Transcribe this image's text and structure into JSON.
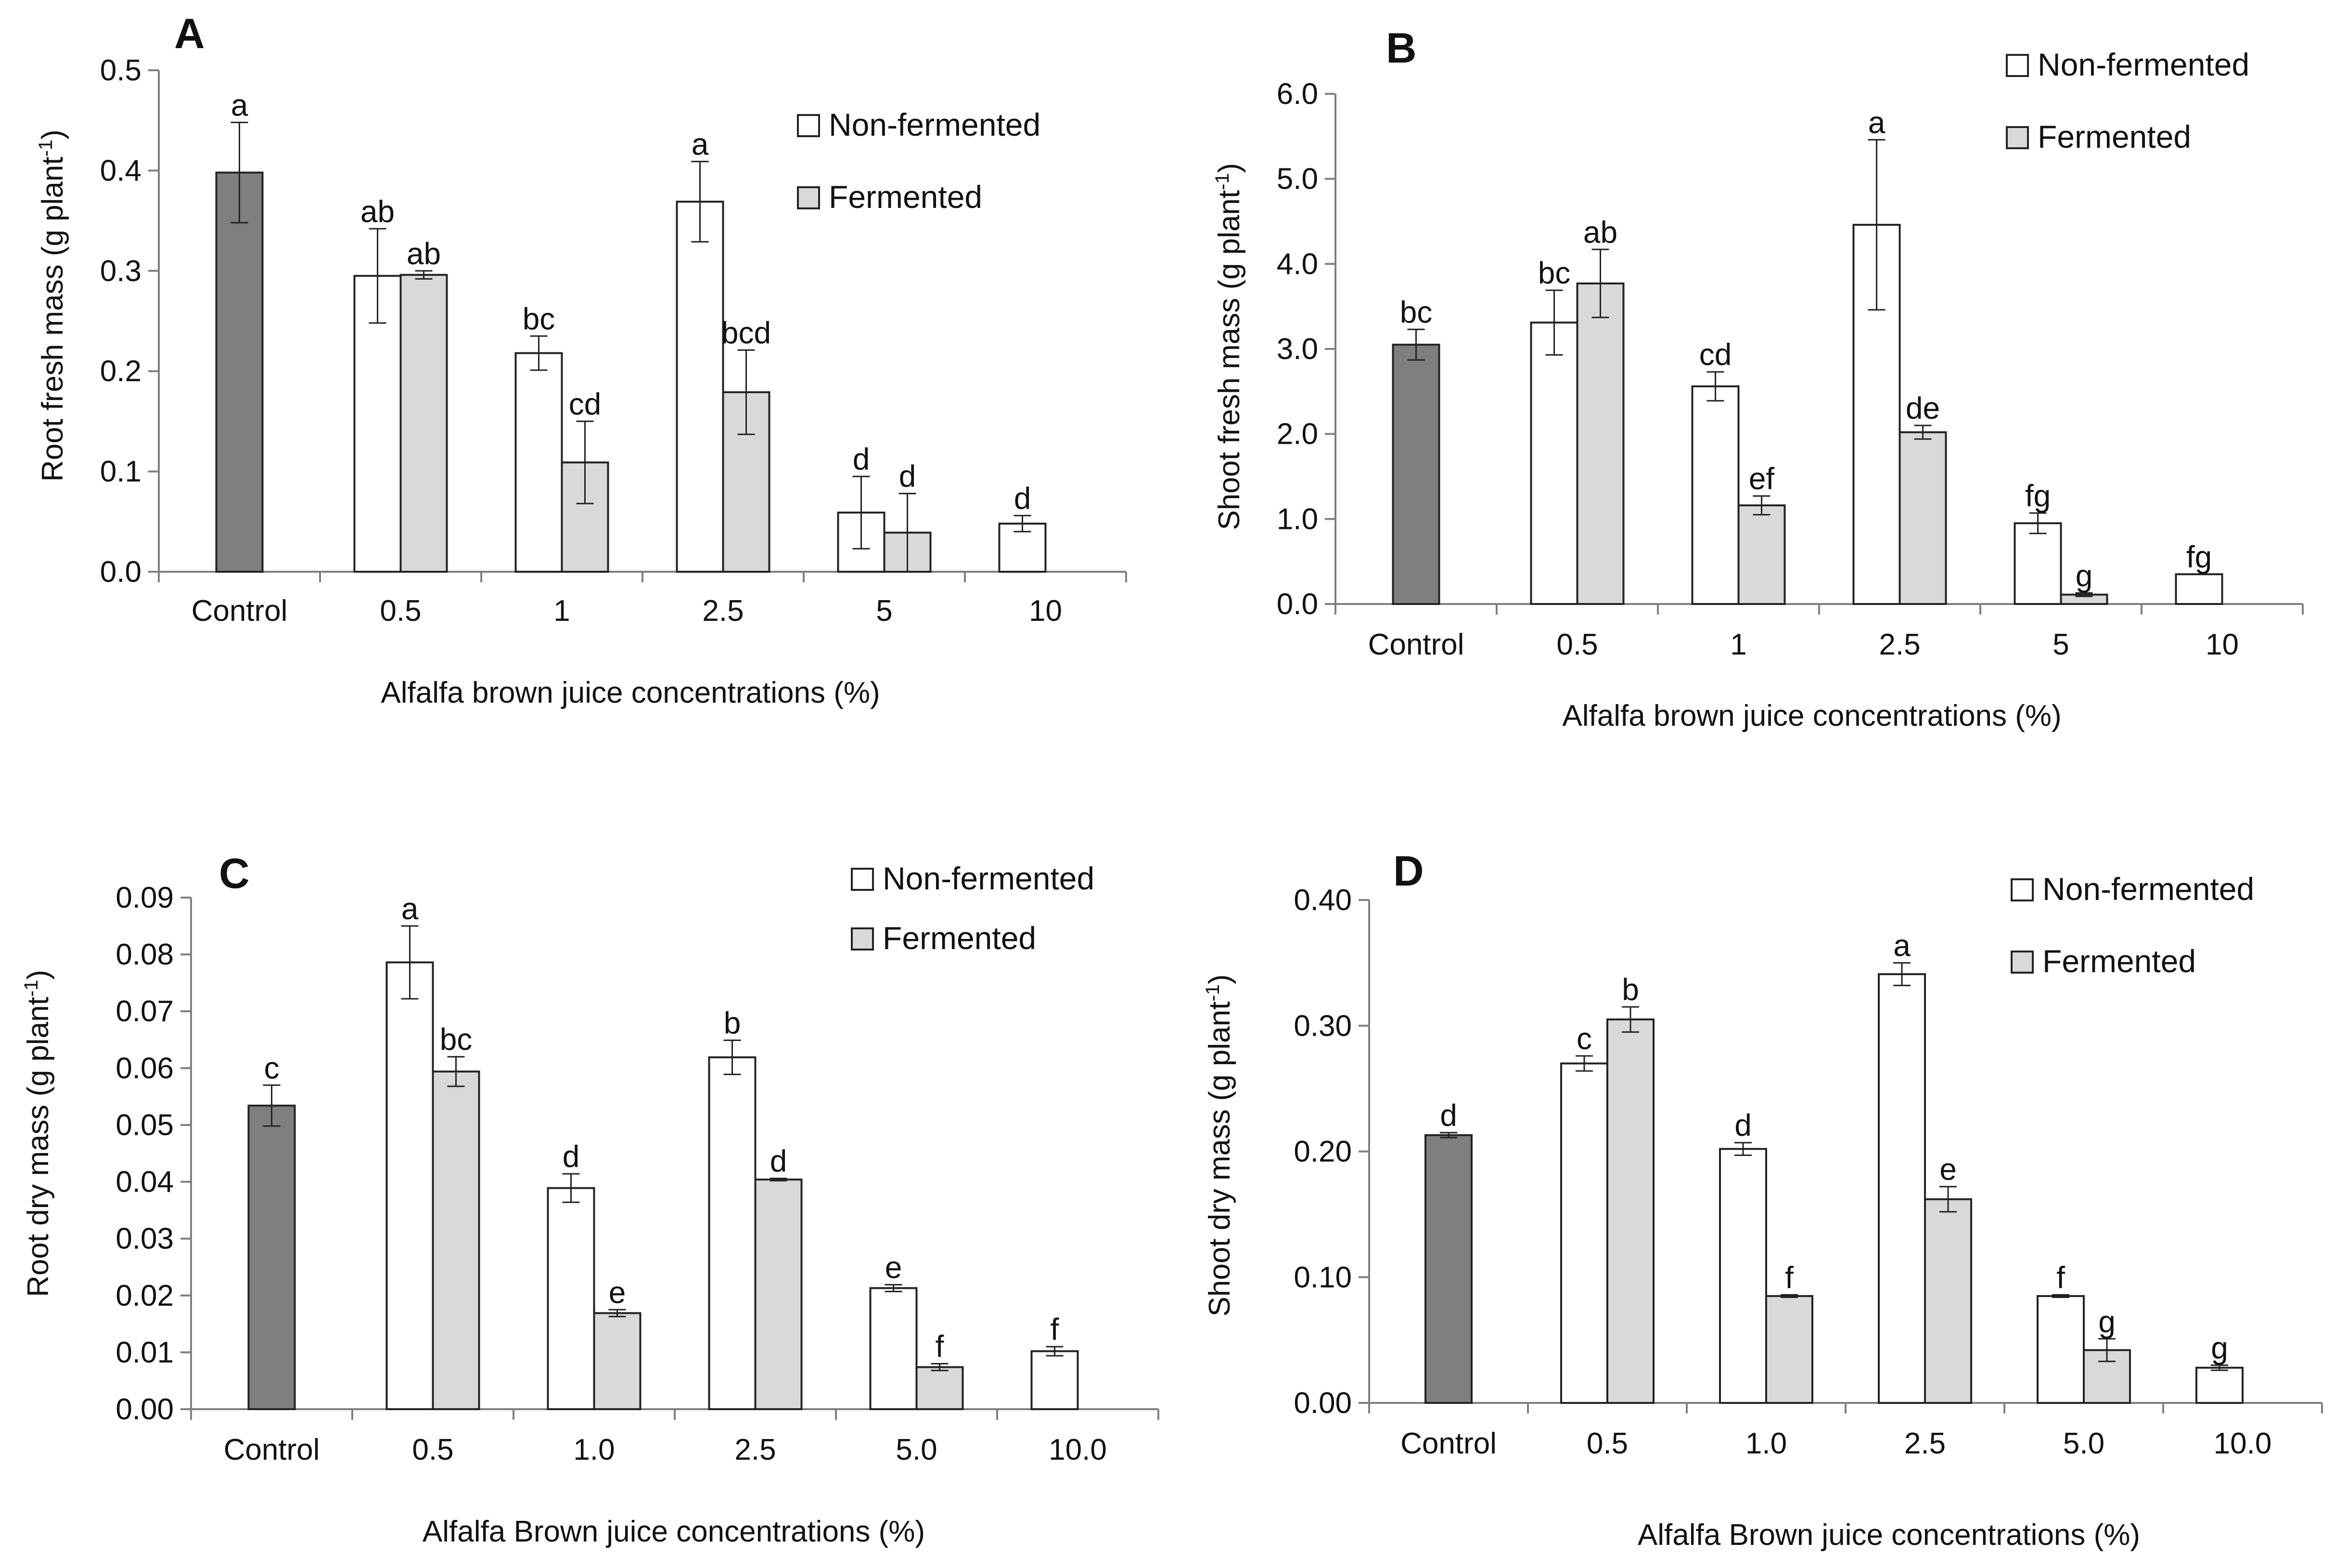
{
  "figure": {
    "legend": {
      "nonfermented_label": "Non-fermented",
      "fermented_label": "Fermented"
    },
    "colors": {
      "control": "#7f7f7f",
      "nonfermented": "#ffffff",
      "fermented": "#d9d9d9",
      "outline": "#222222"
    }
  },
  "chart_data": [
    {
      "panel": "A",
      "type": "bar",
      "title": "",
      "ylabel": "Root fresh mass (g plant",
      "ylabel_sup": "-1",
      "ylabel_end": ")",
      "xlabel": "Alfalfa brown juice concentrations (%)",
      "ylim": [
        0,
        0.5
      ],
      "ytick_labels": [
        "0.0",
        "0.1",
        "0.2",
        "0.3",
        "0.4",
        "0.5"
      ],
      "categories": [
        "Control",
        "0.5",
        "1",
        "2.5",
        "5",
        "10"
      ],
      "legend_position": "top-right",
      "series": [
        {
          "name": "Control",
          "values": [
            0.398,
            null,
            null,
            null,
            null,
            null
          ],
          "errors": [
            0.05,
            null,
            null,
            null,
            null,
            null
          ],
          "letters": [
            "a",
            null,
            null,
            null,
            null,
            null
          ]
        },
        {
          "name": "Non-fermented",
          "values": [
            null,
            0.295,
            0.218,
            0.369,
            0.059,
            0.048
          ],
          "errors": [
            null,
            0.047,
            0.017,
            0.04,
            0.036,
            0.008
          ],
          "letters": [
            null,
            "ab",
            "bc",
            "a",
            "d",
            "d"
          ]
        },
        {
          "name": "Fermented",
          "values": [
            null,
            0.296,
            0.109,
            0.179,
            0.039,
            null
          ],
          "errors": [
            null,
            0.004,
            0.041,
            0.042,
            0.039,
            null
          ],
          "letters": [
            null,
            "ab",
            "cd",
            "bcd",
            "d",
            null
          ]
        }
      ]
    },
    {
      "panel": "B",
      "type": "bar",
      "title": "",
      "ylabel": "Shoot fresh mass (g plant",
      "ylabel_sup": "-1",
      "ylabel_end": ")",
      "xlabel": "Alfalfa brown juice concentrations (%)",
      "ylim": [
        0,
        6.0
      ],
      "ytick_labels": [
        "0.0",
        "1.0",
        "2.0",
        "3.0",
        "4.0",
        "5.0",
        "6.0"
      ],
      "categories": [
        "Control",
        "0.5",
        "1",
        "2.5",
        "5",
        "10"
      ],
      "legend_position": "top-right",
      "series": [
        {
          "name": "Control",
          "values": [
            3.05,
            null,
            null,
            null,
            null,
            null
          ],
          "errors": [
            0.18,
            null,
            null,
            null,
            null,
            null
          ],
          "letters": [
            "bc",
            null,
            null,
            null,
            null,
            null
          ]
        },
        {
          "name": "Non-fermented",
          "values": [
            null,
            3.31,
            2.56,
            4.46,
            0.95,
            0.35
          ],
          "errors": [
            null,
            0.38,
            0.17,
            1.0,
            0.12,
            null
          ],
          "letters": [
            null,
            "bc",
            "cd",
            "a",
            "fg",
            "fg"
          ]
        },
        {
          "name": "Fermented",
          "values": [
            null,
            3.77,
            1.16,
            2.02,
            0.11,
            null
          ],
          "errors": [
            null,
            0.4,
            0.11,
            0.08,
            0.02,
            null
          ],
          "letters": [
            null,
            "ab",
            "ef",
            "de",
            "g",
            null
          ]
        }
      ]
    },
    {
      "panel": "C",
      "type": "bar",
      "title": "",
      "ylabel": "Root dry mass (g plant",
      "ylabel_sup": "-1",
      "ylabel_end": ")",
      "xlabel": "Alfalfa Brown juice concentrations (%)",
      "ylim": [
        0,
        0.09
      ],
      "ytick_labels": [
        "0.00",
        "0.01",
        "0.02",
        "0.03",
        "0.04",
        "0.05",
        "0.06",
        "0.07",
        "0.08",
        "0.09"
      ],
      "categories": [
        "Control",
        "0.5",
        "1.0",
        "2.5",
        "5.0",
        "10.0"
      ],
      "legend_position": "top-right",
      "series": [
        {
          "name": "Control",
          "values": [
            0.0534,
            null,
            null,
            null,
            null,
            null
          ],
          "errors": [
            0.0036,
            null,
            null,
            null,
            null,
            null
          ],
          "letters": [
            "c",
            null,
            null,
            null,
            null,
            null
          ]
        },
        {
          "name": "Non-fermented",
          "values": [
            null,
            0.0786,
            0.0389,
            0.0619,
            0.0213,
            0.0102
          ],
          "errors": [
            null,
            0.0064,
            0.0025,
            0.003,
            0.0006,
            0.0008
          ],
          "letters": [
            null,
            "a",
            "d",
            "b",
            "e",
            "f"
          ]
        },
        {
          "name": "Fermented",
          "values": [
            null,
            0.0594,
            0.0169,
            0.0404,
            0.0074,
            null
          ],
          "errors": [
            null,
            0.0026,
            0.0006,
            0.0002,
            0.0006,
            null
          ],
          "letters": [
            null,
            "bc",
            "e",
            "d",
            "f",
            null
          ]
        }
      ]
    },
    {
      "panel": "D",
      "type": "bar",
      "title": "",
      "ylabel": "Shoot dry mass (g plant",
      "ylabel_sup": "-1",
      "ylabel_end": ")",
      "xlabel": "Alfalfa Brown juice concentrations (%)",
      "ylim": [
        0,
        0.4
      ],
      "ytick_labels": [
        "0.00",
        "0.10",
        "0.20",
        "0.30",
        "0.40"
      ],
      "categories": [
        "Control",
        "0.5",
        "1.0",
        "2.5",
        "5.0",
        "10.0"
      ],
      "legend_position": "top-right",
      "series": [
        {
          "name": "Control",
          "values": [
            0.213,
            null,
            null,
            null,
            null,
            null
          ],
          "errors": [
            0.002,
            null,
            null,
            null,
            null,
            null
          ],
          "letters": [
            "d",
            null,
            null,
            null,
            null,
            null
          ]
        },
        {
          "name": "Non-fermented",
          "values": [
            null,
            0.27,
            0.202,
            0.341,
            0.085,
            0.028
          ],
          "errors": [
            null,
            0.006,
            0.005,
            0.009,
            0.001,
            0.002
          ],
          "letters": [
            null,
            "c",
            "d",
            "a",
            "f",
            "g"
          ]
        },
        {
          "name": "Fermented",
          "values": [
            null,
            0.305,
            0.085,
            0.162,
            0.042,
            null
          ],
          "errors": [
            null,
            0.01,
            0.001,
            0.01,
            0.009,
            null
          ],
          "letters": [
            null,
            "b",
            "f",
            "e",
            "g",
            null
          ]
        }
      ]
    }
  ]
}
